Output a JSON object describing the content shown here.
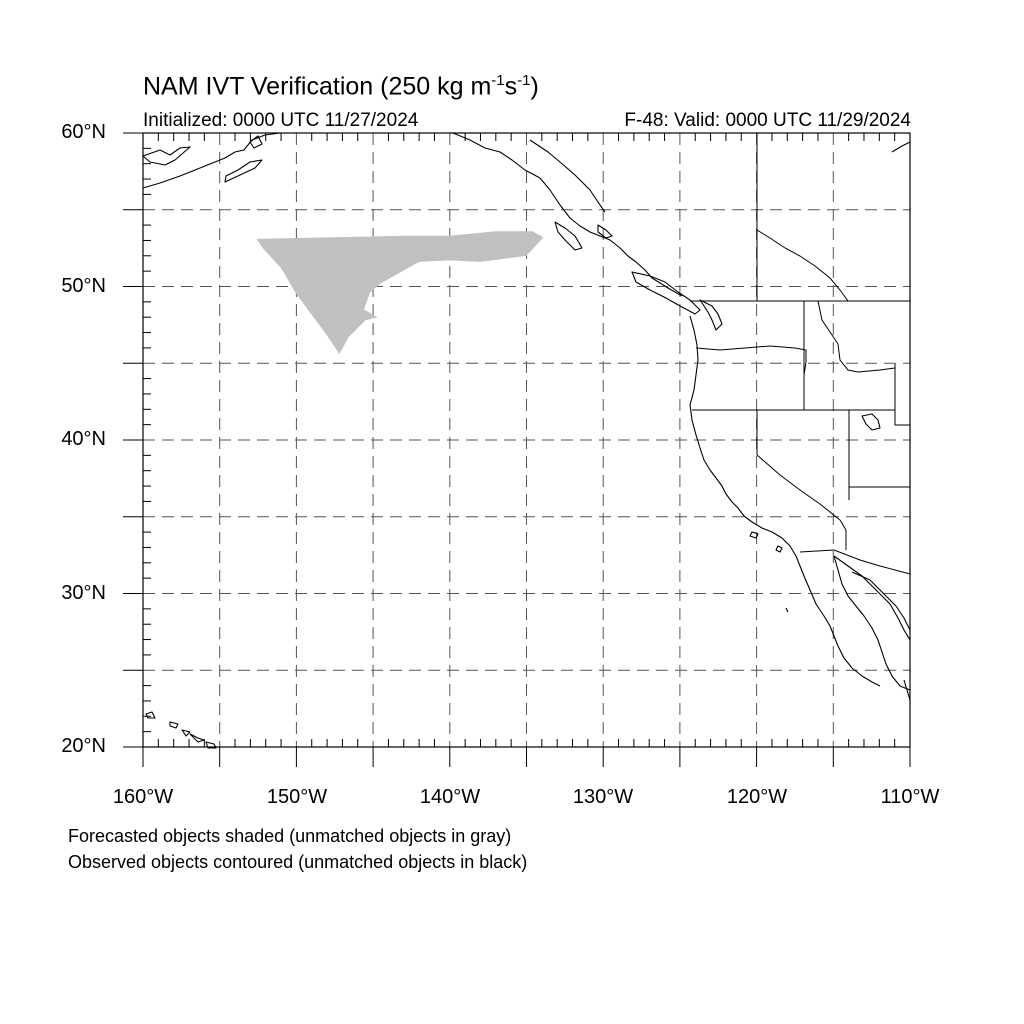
{
  "title": {
    "main": "NAM IVT Verification (250 kg m",
    "exp1": "-1",
    "mid": "s",
    "exp2": "-1",
    "close": ")"
  },
  "subtitle": {
    "left": "Initialized: 0000 UTC 11/27/2024",
    "right": "F-48: Valid: 0000 UTC 11/29/2024"
  },
  "axes": {
    "lat_labels": [
      "60°N",
      "50°N",
      "40°N",
      "30°N",
      "20°N"
    ],
    "lon_labels": [
      "160°W",
      "150°W",
      "140°W",
      "130°W",
      "120°W",
      "110°W"
    ],
    "lat_range": [
      20,
      60
    ],
    "lon_range": [
      -160,
      -110
    ],
    "grid": "dashed, every 5 degrees"
  },
  "legend": {
    "line1": "Forecasted objects shaded (unmatched objects in gray)",
    "line2": "Observed objects contoured (unmatched objects in black)"
  },
  "colors": {
    "unmatched_forecast_fill": "#c0c0c0",
    "coastline": "#000000",
    "grid": "#555555"
  },
  "forecast_object_outline": [
    [
      -152.6,
      53.1
    ],
    [
      -148.0,
      53.2
    ],
    [
      -143.0,
      53.3
    ],
    [
      -140.0,
      53.3
    ],
    [
      -137.0,
      53.6
    ],
    [
      -134.6,
      53.6
    ],
    [
      -133.9,
      53.2
    ],
    [
      -135.0,
      52.0
    ],
    [
      -138.0,
      51.6
    ],
    [
      -140.0,
      51.7
    ],
    [
      -142.0,
      51.6
    ],
    [
      -144.5,
      50.2
    ],
    [
      -145.2,
      49.6
    ],
    [
      -145.6,
      48.5
    ],
    [
      -144.7,
      48.0
    ],
    [
      -145.5,
      47.8
    ],
    [
      -146.6,
      46.7
    ],
    [
      -147.2,
      45.6
    ],
    [
      -148.0,
      46.8
    ],
    [
      -150.0,
      49.5
    ],
    [
      -151.0,
      51.2
    ],
    [
      -152.2,
      52.5
    ]
  ]
}
